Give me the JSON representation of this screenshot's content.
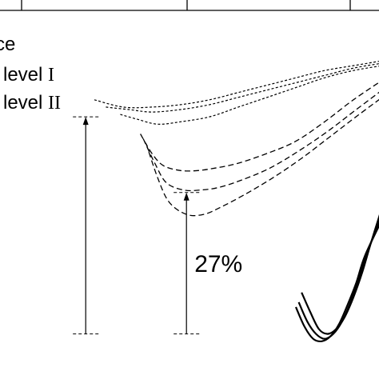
{
  "chart_data": {
    "type": "line",
    "title": "",
    "xlabel": "",
    "ylabel": "",
    "grid": false,
    "legend": {
      "placement": "top-left",
      "entries": [
        {
          "label_main": "ce",
          "label_roman": ""
        },
        {
          "label_main": "level ",
          "label_roman": "I"
        },
        {
          "label_main": "level ",
          "label_roman": "II"
        }
      ]
    },
    "series": [
      {
        "group": "upper",
        "style": "dotted",
        "x": [
          0,
          10,
          20,
          30,
          40,
          50,
          60,
          70,
          80,
          90,
          100
        ],
        "y": [
          -16,
          -19,
          -19,
          -18,
          -16,
          -13,
          -10,
          -7,
          -4,
          -2,
          0
        ]
      },
      {
        "group": "upper",
        "style": "dotted",
        "x": [
          4,
          12,
          20,
          30,
          40,
          50,
          60,
          70,
          80,
          90,
          100
        ],
        "y": [
          -19,
          -20,
          -21,
          -20,
          -18,
          -15,
          -12,
          -9,
          -6,
          -3,
          -1
        ]
      },
      {
        "group": "upper",
        "style": "dotted",
        "x": [
          9,
          15,
          22,
          30,
          40,
          50,
          60,
          70,
          80,
          90,
          100
        ],
        "y": [
          -22,
          -24,
          -26,
          -25,
          -23,
          -19,
          -15,
          -11,
          -7,
          -4,
          -2
        ]
      },
      {
        "group": "middle",
        "style": "dashed",
        "x": [
          16,
          20,
          24,
          30,
          36,
          42,
          50,
          60,
          70,
          80,
          90,
          100
        ],
        "y": [
          -30,
          -38,
          -43,
          -45,
          -45,
          -44,
          -42,
          -38,
          -33,
          -25,
          -16,
          -8
        ]
      },
      {
        "group": "middle",
        "style": "dashed",
        "x": [
          17,
          21,
          25,
          31,
          37,
          43,
          51,
          61,
          71,
          81,
          91,
          100
        ],
        "y": [
          -32,
          -42,
          -50,
          -53,
          -53,
          -52,
          -49,
          -44,
          -37,
          -29,
          -20,
          -12
        ]
      },
      {
        "group": "middle",
        "style": "dashed",
        "x": [
          18,
          22,
          26,
          32,
          38,
          44,
          52,
          62,
          72,
          82,
          92,
          100
        ],
        "y": [
          -34,
          -48,
          -58,
          -63,
          -63,
          -60,
          -55,
          -48,
          -40,
          -31,
          -22,
          -15
        ]
      },
      {
        "group": "lower",
        "style": "solid",
        "x": [
          72,
          75,
          78,
          81,
          84,
          87,
          90,
          93,
          96,
          100
        ],
        "y": [
          -95,
          -103,
          -110,
          -112,
          -110,
          -105,
          -97,
          -87,
          -75,
          -60
        ]
      },
      {
        "group": "lower",
        "style": "solid",
        "x": [
          71,
          74,
          77,
          80,
          83,
          86,
          89,
          92,
          95,
          100
        ],
        "y": [
          -99,
          -107,
          -112,
          -114,
          -112,
          -107,
          -99,
          -89,
          -78,
          -63
        ]
      },
      {
        "group": "lower",
        "style": "solid",
        "x": [
          70,
          73,
          76,
          79,
          82,
          85,
          88,
          91,
          94,
          100
        ],
        "y": [
          -101,
          -109,
          -114,
          -115,
          -113,
          -108,
          -100,
          -91,
          -80,
          -65
        ]
      }
    ],
    "annotations": [
      {
        "text": "",
        "from_y": -23,
        "to_y": -112,
        "x": -3
      },
      {
        "text": "27%",
        "from_y": -54,
        "to_y": -112,
        "x": 32
      }
    ]
  }
}
